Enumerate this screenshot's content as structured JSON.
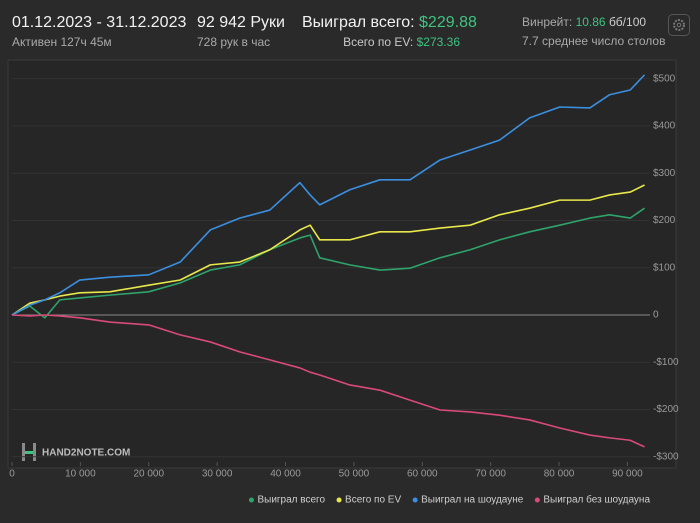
{
  "header": {
    "date_range": "01.12.2023 - 31.12.2023",
    "active": "Активен 127ч 45м",
    "hands": "92 942 Руки",
    "hands_per_hour": "728 рук в час",
    "won_label": "Выиграл всего:",
    "won_value": "$229.88",
    "ev_label": "Всего по EV:",
    "ev_value": "$273.36",
    "winrate_label": "Винрейт:",
    "winrate_value": "10.86",
    "winrate_unit": "бб/100",
    "tables": "7.7 среднее число столов"
  },
  "watermark": "HAND2NOTE.COM",
  "chart_data": {
    "type": "line",
    "x": [
      0,
      2600,
      4800,
      7000,
      9900,
      14300,
      20000,
      24600,
      29000,
      33300,
      37700,
      42100,
      43600,
      45000,
      49400,
      53800,
      58200,
      62600,
      67000,
      71300,
      75700,
      80100,
      84500,
      87400,
      90400,
      92500
    ],
    "series": [
      {
        "name": "Выиграл всего",
        "color": "#2fa36b",
        "values": [
          0,
          19,
          -6,
          32,
          36,
          42,
          49,
          68,
          95,
          106,
          138,
          163,
          169,
          121,
          106,
          95,
          99,
          121,
          138,
          159,
          176,
          190,
          205,
          212,
          205,
          226
        ]
      },
      {
        "name": "Всего по EV",
        "color": "#e8e84a",
        "values": [
          0,
          25,
          32,
          40,
          47,
          49,
          63,
          74,
          106,
          112,
          138,
          180,
          190,
          159,
          159,
          176,
          176,
          184,
          190,
          212,
          226,
          243,
          243,
          254,
          260,
          275
        ]
      },
      {
        "name": "Выиграл на шоудауне",
        "color": "#3b8fe0",
        "values": [
          0,
          21,
          32,
          47,
          74,
          80,
          85,
          112,
          180,
          205,
          222,
          280,
          254,
          233,
          265,
          286,
          286,
          328,
          349,
          370,
          417,
          440,
          438,
          466,
          476,
          508
        ]
      },
      {
        "name": "Выиграл без шоудауна",
        "color": "#d94a78",
        "values": [
          0,
          -2,
          0,
          -2,
          -6,
          -15,
          -21,
          -42,
          -57,
          -78,
          -95,
          -112,
          -121,
          -127,
          -148,
          -159,
          -180,
          -201,
          -205,
          -212,
          -222,
          -239,
          -254,
          -260,
          -265,
          -279
        ]
      }
    ],
    "xlim": [
      0,
      93300
    ],
    "ylim": [
      -311,
      531
    ],
    "xticks": [
      0,
      {
        "value": 10000,
        "label": "10 000"
      },
      {
        "value": 20000,
        "label": "20 000"
      },
      {
        "value": 30000,
        "label": "30 000"
      },
      {
        "value": 40000,
        "label": "40 000"
      },
      {
        "value": 50000,
        "label": "50 000"
      },
      {
        "value": 60000,
        "label": "60 000"
      },
      {
        "value": 70000,
        "label": "70 000"
      },
      {
        "value": 80000,
        "label": "80 000"
      },
      {
        "value": 90000,
        "label": "90 000"
      }
    ],
    "yticks": [
      {
        "value": -300,
        "label": "-$300"
      },
      {
        "value": -200,
        "label": "-$200"
      },
      {
        "value": -100,
        "label": "-$100"
      },
      0,
      {
        "value": 100,
        "label": "$100"
      },
      {
        "value": 200,
        "label": "$200"
      },
      {
        "value": 300,
        "label": "$300"
      },
      {
        "value": 400,
        "label": "$400"
      },
      {
        "value": 500,
        "label": "$500"
      }
    ],
    "grid": true
  }
}
